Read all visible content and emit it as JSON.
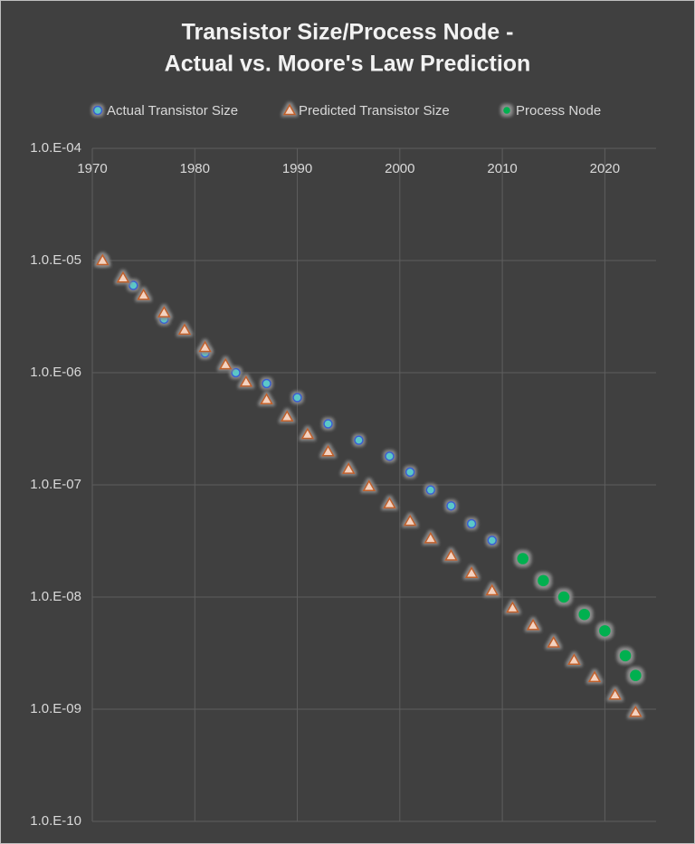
{
  "chart_data": {
    "type": "scatter",
    "title": [
      "Transistor Size/Process Node -",
      "Actual vs. Moore's Law Prediction"
    ],
    "log_y": true,
    "grid": true,
    "legend": "top",
    "xaxis_labels": "top",
    "xlim": [
      1970,
      2025
    ],
    "xticks": [
      1970,
      1980,
      1990,
      2000,
      2010,
      2020
    ],
    "ylim": [
      1e-10,
      0.0001
    ],
    "yticks": [
      {
        "value": 1e-10,
        "label": "1.0.E-10"
      },
      {
        "value": 1e-09,
        "label": "1.0.E-09"
      },
      {
        "value": 1e-08,
        "label": "1.0.E-08"
      },
      {
        "value": 1e-07,
        "label": "1.0.E-07"
      },
      {
        "value": 1e-06,
        "label": "1.0.E-06"
      },
      {
        "value": 1e-05,
        "label": "1.0.E-05"
      },
      {
        "value": 0.0001,
        "label": "1.0.E-04"
      }
    ],
    "series": [
      {
        "name": "Actual Transistor Size",
        "color": "#5cc8c8",
        "glow": "#3a5fd0",
        "marker": "circle",
        "x": [
          1971,
          1974,
          1977,
          1981,
          1984,
          1987,
          1990,
          1993,
          1996,
          1999,
          2001,
          2003,
          2005,
          2007,
          2009
        ],
        "values": [
          1e-05,
          6e-06,
          3e-06,
          1.5e-06,
          1e-06,
          8e-07,
          6e-07,
          3.5e-07,
          2.5e-07,
          1.8e-07,
          1.3e-07,
          9e-08,
          6.5e-08,
          4.5e-08,
          3.2e-08
        ]
      },
      {
        "name": "Predicted Transistor Size",
        "color": "#f4d2c0",
        "glow": "#c0602a",
        "marker": "triangle",
        "x": [
          1971,
          1973,
          1975,
          1977,
          1979,
          1981,
          1983,
          1985,
          1987,
          1989,
          1991,
          1993,
          1995,
          1997,
          1999,
          2001,
          2003,
          2005,
          2007,
          2009,
          2011,
          2013,
          2015,
          2017,
          2019,
          2021,
          2023
        ],
        "values": [
          1e-05,
          7e-06,
          4.9e-06,
          3.43e-06,
          2.4e-06,
          1.68e-06,
          1.18e-06,
          8.24e-07,
          5.76e-07,
          4.04e-07,
          2.82e-07,
          1.98e-07,
          1.38e-07,
          9.69e-08,
          6.78e-08,
          4.75e-08,
          3.32e-08,
          2.33e-08,
          1.63e-08,
          1.14e-08,
          7.98e-09,
          5.59e-09,
          3.91e-09,
          2.74e-09,
          1.92e-09,
          1.34e-09,
          9.39e-10
        ]
      },
      {
        "name": "Process Node",
        "color": "#00b050",
        "glow": "#8a8a8a",
        "marker": "circle-large",
        "x": [
          2012,
          2014,
          2016,
          2018,
          2020,
          2022,
          2023
        ],
        "values": [
          2.2e-08,
          1.4e-08,
          1e-08,
          7e-09,
          5e-09,
          3e-09,
          2e-09
        ]
      }
    ]
  }
}
